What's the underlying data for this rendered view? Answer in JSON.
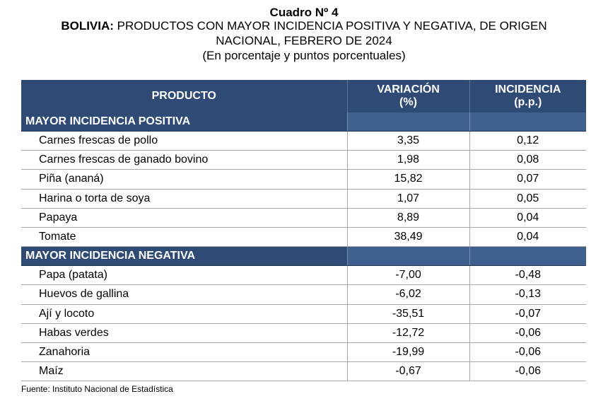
{
  "header": {
    "cuadro": "Cuadro Nº 4",
    "title_bold": "BOLIVIA:",
    "title_line1_rest": " PRODUCTOS CON MAYOR INCIDENCIA POSITIVA Y NEGATIVA, DE ORIGEN",
    "title_line2": "NACIONAL, FEBRERO DE 2024",
    "subtitle": "(En porcentaje y puntos porcentuales)"
  },
  "columns": {
    "product": "PRODUCTO",
    "variation_1": "VARIACIÓN",
    "variation_2": "(%)",
    "incidence_1": "INCIDENCIA",
    "incidence_2": "(p.p.)"
  },
  "sections": [
    {
      "name": "MAYOR INCIDENCIA POSITIVA",
      "rows": [
        {
          "product": "Carnes frescas de pollo",
          "variation": "3,35",
          "incidence": "0,12"
        },
        {
          "product": "Carnes frescas de ganado bovino",
          "variation": "1,98",
          "incidence": "0,08"
        },
        {
          "product": "Piña (ananá)",
          "variation": "15,82",
          "incidence": "0,07"
        },
        {
          "product": "Harina o torta de soya",
          "variation": "1,07",
          "incidence": "0,05"
        },
        {
          "product": "Papaya",
          "variation": "8,89",
          "incidence": "0,04"
        },
        {
          "product": "Tomate",
          "variation": "38,49",
          "incidence": "0,04"
        }
      ]
    },
    {
      "name": "MAYOR INCIDENCIA NEGATIVA",
      "rows": [
        {
          "product": "Papa (patata)",
          "variation": "-7,00",
          "incidence": "-0,48"
        },
        {
          "product": "Huevos de gallina",
          "variation": "-6,02",
          "incidence": "-0,13"
        },
        {
          "product": "Ají y locoto",
          "variation": "-35,51",
          "incidence": "-0,07"
        },
        {
          "product": "Habas verdes",
          "variation": "-12,72",
          "incidence": "-0,06"
        },
        {
          "product": "Zanahoria",
          "variation": "-19,99",
          "incidence": "-0,06"
        },
        {
          "product": "Maíz",
          "variation": "-0,67",
          "incidence": "-0,06"
        }
      ]
    }
  ],
  "source": "Fuente: Instituto Nacional de Estadística"
}
